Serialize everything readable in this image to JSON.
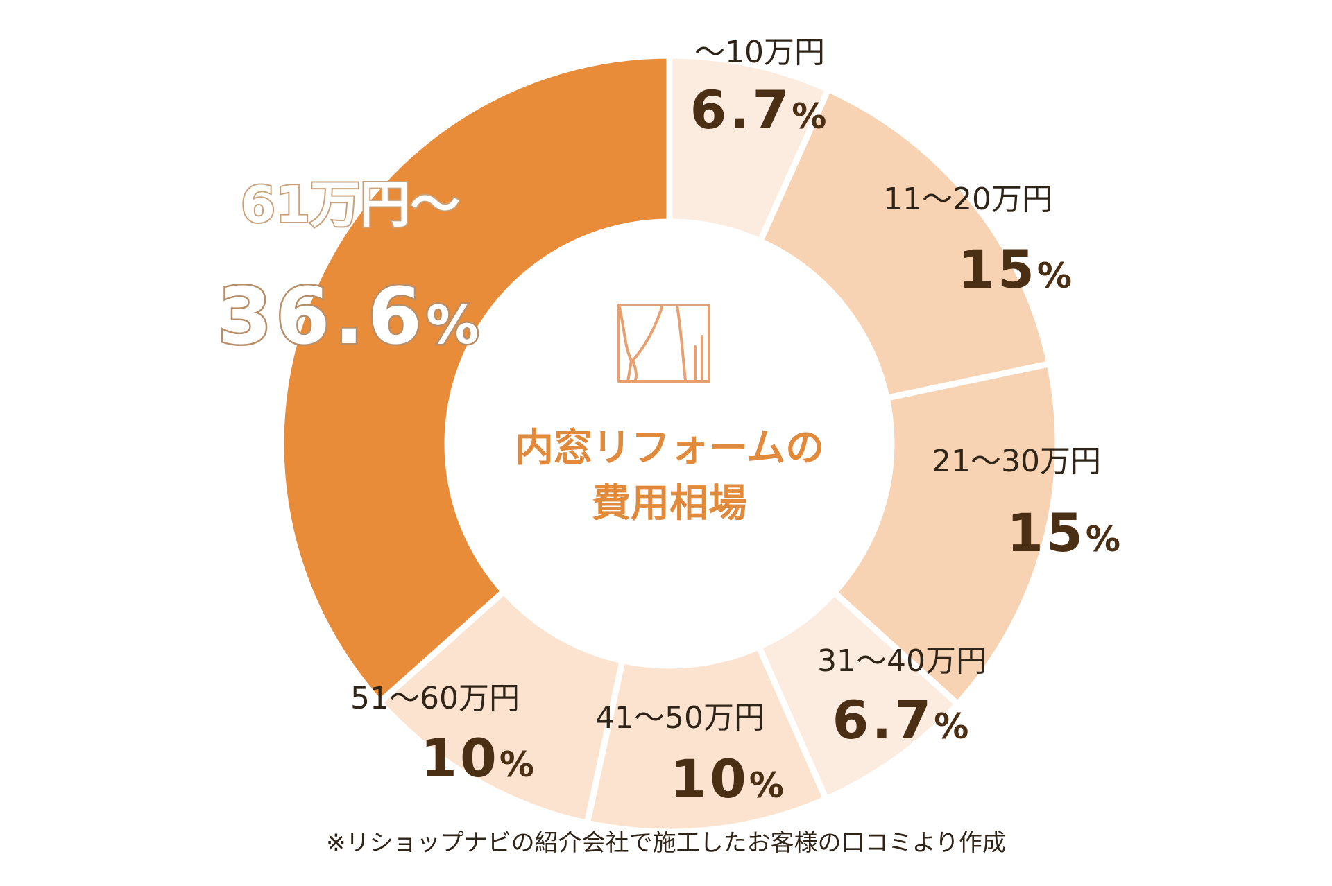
{
  "chart_data": {
    "type": "pie",
    "title": "内窓リフォームの費用相場",
    "title_lines": [
      "内窓リフォームの",
      "費用相場"
    ],
    "center_icon": "curtain-window-icon",
    "unit": "%",
    "slices": [
      {
        "label": "～10万円",
        "value": 6.7,
        "value_text": "6.7",
        "color": "#fcebdf"
      },
      {
        "label": "11～20万円",
        "value": 15,
        "value_text": "15",
        "color": "#f7d3b3"
      },
      {
        "label": "21～30万円",
        "value": 15,
        "value_text": "15",
        "color": "#f7d3b3"
      },
      {
        "label": "31～40万円",
        "value": 6.7,
        "value_text": "6.7",
        "color": "#fcebdf"
      },
      {
        "label": "41～50万円",
        "value": 10,
        "value_text": "10",
        "color": "#fbe3cf"
      },
      {
        "label": "51～60万円",
        "value": 10,
        "value_text": "10",
        "color": "#fbe3cf"
      },
      {
        "label": "61万円～",
        "value": 36.6,
        "value_text": "36.6",
        "color": "#e88c3a"
      }
    ],
    "colors": {
      "accent": "#e28a3b",
      "text": "#2f2418",
      "value_text": "#4a2f15",
      "icon": "#e8a070"
    }
  },
  "footnote": "※リショップナビの紹介会社で施工したお客様の口コミより作成"
}
